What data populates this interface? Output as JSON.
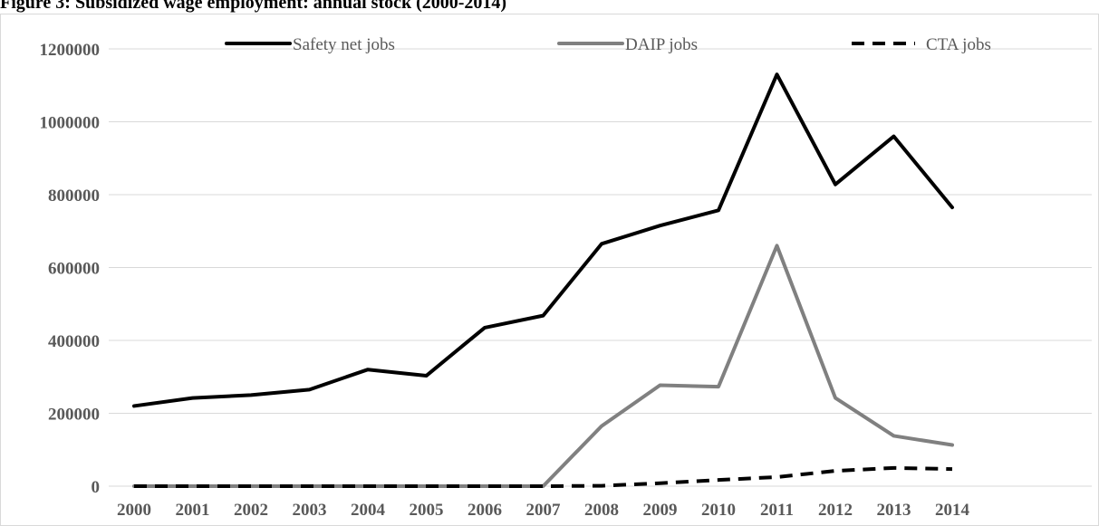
{
  "figure": {
    "title": "Figure 3: Subsidized wage employment: annual stock  (2000-2014)"
  },
  "chart_data": {
    "type": "line",
    "x": [
      "2000",
      "2001",
      "2002",
      "2003",
      "2004",
      "2005",
      "2006",
      "2007",
      "2008",
      "2009",
      "2010",
      "2011",
      "2012",
      "2013",
      "2014"
    ],
    "ylim": [
      0,
      1200000
    ],
    "yticks": [
      0,
      200000,
      400000,
      600000,
      800000,
      1000000,
      1200000
    ],
    "ytick_labels": [
      "0",
      "200000",
      "400000",
      "600000",
      "800000",
      "1000000",
      "1200000"
    ],
    "grid": true,
    "legend_position": "top",
    "series": [
      {
        "name": "Safety net jobs",
        "color": "#000000",
        "dash": "solid",
        "values": [
          220000,
          242000,
          250000,
          265000,
          320000,
          303000,
          435000,
          468000,
          665000,
          715000,
          757000,
          1130000,
          828000,
          960000,
          765000
        ]
      },
      {
        "name": "DAIP jobs",
        "color": "#808080",
        "dash": "solid",
        "values": [
          0,
          0,
          0,
          0,
          0,
          0,
          0,
          0,
          165000,
          277000,
          273000,
          660000,
          242000,
          138000,
          113000
        ]
      },
      {
        "name": "CTA jobs",
        "color": "#000000",
        "dash": "dashed",
        "values": [
          0,
          0,
          0,
          0,
          0,
          0,
          0,
          0,
          1000,
          8000,
          17000,
          25000,
          42000,
          50000,
          47000
        ]
      }
    ]
  }
}
